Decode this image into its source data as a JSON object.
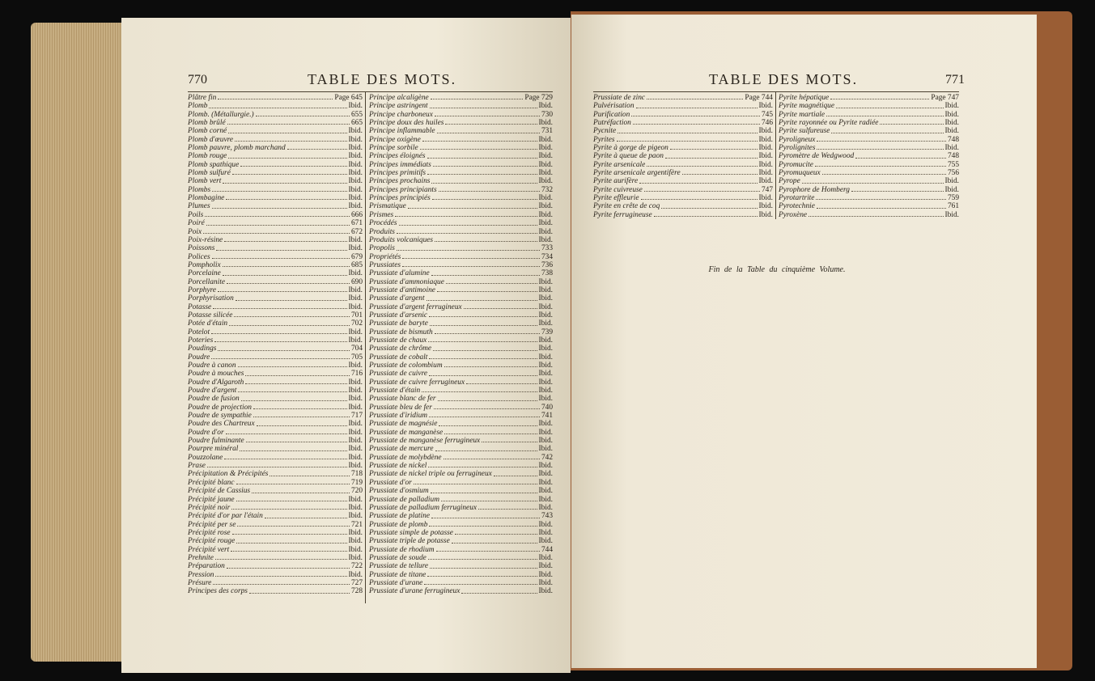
{
  "pages": [
    {
      "number": "770",
      "title": "TABLE DES MOTS.",
      "columns": [
        [
          [
            "Plâtre fin",
            "Page 645"
          ],
          [
            "Plomb",
            "Ibid."
          ],
          [
            "Plomb. (Métallurgie.)",
            "655"
          ],
          [
            "Plomb brûlé",
            "665"
          ],
          [
            "Plomb corné",
            "Ibid."
          ],
          [
            "Plomb d'œuvre",
            "Ibid."
          ],
          [
            "Plomb pauvre, plomb marchand",
            "Ibid."
          ],
          [
            "Plomb rouge",
            "Ibid."
          ],
          [
            "Plomb spathique",
            "Ibid."
          ],
          [
            "Plomb sulfuré",
            "Ibid."
          ],
          [
            "Plomb vert",
            "Ibid."
          ],
          [
            "Plombs",
            "Ibid."
          ],
          [
            "Plombagine",
            "Ibid."
          ],
          [
            "Plumes",
            "Ibid."
          ],
          [
            "Poils",
            "666"
          ],
          [
            "Poiré",
            "671"
          ],
          [
            "Poix",
            "672"
          ],
          [
            "Poix-résine",
            "Ibid."
          ],
          [
            "Poissons",
            "Ibid."
          ],
          [
            "Polices",
            "679"
          ],
          [
            "Pompholix",
            "685"
          ],
          [
            "Porcelaine",
            "Ibid."
          ],
          [
            "Porcellanite",
            "690"
          ],
          [
            "Porphyre",
            "Ibid."
          ],
          [
            "Porphyrisation",
            "Ibid."
          ],
          [
            "Potasse",
            "Ibid."
          ],
          [
            "Potasse silicée",
            "701"
          ],
          [
            "Potée d'étain",
            "702"
          ],
          [
            "Potelot",
            "Ibid."
          ],
          [
            "Poteries",
            "Ibid."
          ],
          [
            "Poudings",
            "704"
          ],
          [
            "Poudre",
            "705"
          ],
          [
            "Poudre à canon",
            "Ibid."
          ],
          [
            "Poudre à mouches",
            "716"
          ],
          [
            "Poudre d'Algaroth",
            "Ibid."
          ],
          [
            "Poudre d'argent",
            "Ibid."
          ],
          [
            "Poudre de fusion",
            "Ibid."
          ],
          [
            "Poudre de projection",
            "Ibid."
          ],
          [
            "Poudre de sympathie",
            "717"
          ],
          [
            "Poudre des Chartreux",
            "Ibid."
          ],
          [
            "Poudre d'or",
            "Ibid."
          ],
          [
            "Poudre fulminante",
            "Ibid."
          ],
          [
            "Pourpre minéral",
            "Ibid."
          ],
          [
            "Pouzzolane",
            "Ibid."
          ],
          [
            "Prase",
            "Ibid."
          ],
          [
            "Précipitation & Précipités",
            "718"
          ],
          [
            "Précipité blanc",
            "719"
          ],
          [
            "Précipité de Cassius",
            "720"
          ],
          [
            "Précipité jaune",
            "Ibid."
          ],
          [
            "Précipité noir",
            "Ibid."
          ],
          [
            "Précipité d'or par l'étain",
            "Ibid."
          ],
          [
            "Précipité per se",
            "721"
          ],
          [
            "Précipité rose",
            "Ibid."
          ],
          [
            "Précipité rouge",
            "Ibid."
          ],
          [
            "Précipité vert",
            "Ibid."
          ],
          [
            "Prehnite",
            "Ibid."
          ],
          [
            "Préparation",
            "722"
          ],
          [
            "Pression",
            "Ibid."
          ],
          [
            "Présure",
            "727"
          ],
          [
            "Principes des corps",
            "728"
          ]
        ],
        [
          [
            "Principe alcaligène",
            "Page 729"
          ],
          [
            "Principe astringent",
            "Ibid."
          ],
          [
            "Principe charboneux",
            "730"
          ],
          [
            "Principe doux des huiles",
            "Ibid."
          ],
          [
            "Principe inflammable",
            "731"
          ],
          [
            "Principe oxigène",
            "Ibid."
          ],
          [
            "Principe sorbile",
            "Ibid."
          ],
          [
            "Principes éloignés",
            "Ibid."
          ],
          [
            "Principes immédiats",
            "Ibid."
          ],
          [
            "Principes primitifs",
            "Ibid."
          ],
          [
            "Principes prochains",
            "Ibid."
          ],
          [
            "Principes principiants",
            "732"
          ],
          [
            "Principes principiés",
            "Ibid."
          ],
          [
            "Prismatique",
            "Ibid."
          ],
          [
            "Prismes",
            "Ibid."
          ],
          [
            "Procédés",
            "Ibid."
          ],
          [
            "Produits",
            "Ibid."
          ],
          [
            "Produits volcaniques",
            "Ibid."
          ],
          [
            "Propolis",
            "733"
          ],
          [
            "Propriétés",
            "734"
          ],
          [
            "Prussiates",
            "736"
          ],
          [
            "Prussiate d'alumine",
            "738"
          ],
          [
            "Prussiate d'ammoniaque",
            "Ibid."
          ],
          [
            "Prussiate d'antimoine",
            "Ibid."
          ],
          [
            "Prussiate d'argent",
            "Ibid."
          ],
          [
            "Prussiate d'argent ferrugineux",
            "Ibid."
          ],
          [
            "Prussiate d'arsenic",
            "Ibid."
          ],
          [
            "Prussiate de baryte",
            "Ibid."
          ],
          [
            "Prussiate de bismuth",
            "739"
          ],
          [
            "Prussiate de chaux",
            "Ibid."
          ],
          [
            "Prussiate de chrôme",
            "Ibid."
          ],
          [
            "Prussiate de cobalt",
            "Ibid."
          ],
          [
            "Prussiate de colombium",
            "Ibid."
          ],
          [
            "Prussiate de cuivre",
            "Ibid."
          ],
          [
            "Prussiate de cuivre ferrugineux",
            "Ibid."
          ],
          [
            "Prussiate d'étain",
            "Ibid."
          ],
          [
            "Prussiate blanc de fer",
            "Ibid."
          ],
          [
            "Prussiate bleu de fer",
            "740"
          ],
          [
            "Prussiate d'iridium",
            "741"
          ],
          [
            "Prussiate de magnésie",
            "Ibid."
          ],
          [
            "Prussiate de manganèse",
            "Ibid."
          ],
          [
            "Prussiate de manganèse ferrugineux",
            "Ibid."
          ],
          [
            "Prussiate de mercure",
            "Ibid."
          ],
          [
            "Prussiate de molybdène",
            "742"
          ],
          [
            "Prussiate de nickel",
            "Ibid."
          ],
          [
            "Prussiate de nickel triple ou ferrugineux",
            "Ibid."
          ],
          [
            "Prussiate d'or",
            "Ibid."
          ],
          [
            "Prussiate d'osmium",
            "Ibid."
          ],
          [
            "Prussiate de palladium",
            "Ibid."
          ],
          [
            "Prussiate de palladium ferrugineux",
            "Ibid."
          ],
          [
            "Prussiate de platine",
            "743"
          ],
          [
            "Prussiate de plomb",
            "Ibid."
          ],
          [
            "Prussiate simple de potasse",
            "Ibid."
          ],
          [
            "Prussiate triple de potasse",
            "Ibid."
          ],
          [
            "Prussiate de rhodium",
            "744"
          ],
          [
            "Prussiate de soude",
            "Ibid."
          ],
          [
            "Prussiate de tellure",
            "Ibid."
          ],
          [
            "Prussiate de titane",
            "Ibid."
          ],
          [
            "Prussiate d'urane",
            "Ibid."
          ],
          [
            "Prussiate d'urane ferrugineux",
            "Ibid."
          ]
        ]
      ]
    },
    {
      "number": "771",
      "title": "TABLE DES MOTS.",
      "columns": [
        [
          [
            "Prussiate de zinc",
            "Page 744"
          ],
          [
            "Pulvérisation",
            "Ibid."
          ],
          [
            "Purification",
            "745"
          ],
          [
            "Putréfaction",
            "746"
          ],
          [
            "Pycnite",
            "Ibid."
          ],
          [
            "Pyrites",
            "Ibid."
          ],
          [
            "Pyrite à gorge de pigeon",
            "Ibid."
          ],
          [
            "Pyrite à queue de paon",
            "Ibid."
          ],
          [
            "Pyrite arsenicale",
            "Ibid."
          ],
          [
            "Pyrite arsenicale argentifère",
            "Ibid."
          ],
          [
            "Pyrite aurifère",
            "Ibid."
          ],
          [
            "Pyrite cuivreuse",
            "747"
          ],
          [
            "Pyrite effleurie",
            "Ibid."
          ],
          [
            "Pyrite en crête de coq",
            "Ibid."
          ],
          [
            "Pyrite ferrugineuse",
            "Ibid."
          ]
        ],
        [
          [
            "Pyrite hépatique",
            "Page 747"
          ],
          [
            "Pyrite magnétique",
            "Ibid."
          ],
          [
            "Pyrite martiale",
            "Ibid."
          ],
          [
            "Pyrite rayonnée ou Pyrite radiée",
            "Ibid."
          ],
          [
            "Pyrite sulfureuse",
            "Ibid."
          ],
          [
            "Pyroligneux",
            "748"
          ],
          [
            "Pyrolignites",
            "Ibid."
          ],
          [
            "Pyromètre de Wedgwood",
            "748"
          ],
          [
            "Pyromucite",
            "755"
          ],
          [
            "Pyromuqueux",
            "756"
          ],
          [
            "Pyrope",
            "Ibid."
          ],
          [
            "Pyrophore de Homberg",
            "Ibid."
          ],
          [
            "Pyrotartrite",
            "759"
          ],
          [
            "Pyrotechnie",
            "761"
          ],
          [
            "Pyroxène",
            "Ibid."
          ]
        ]
      ],
      "closing": "Fin de la Table du cinquième Volume."
    }
  ]
}
